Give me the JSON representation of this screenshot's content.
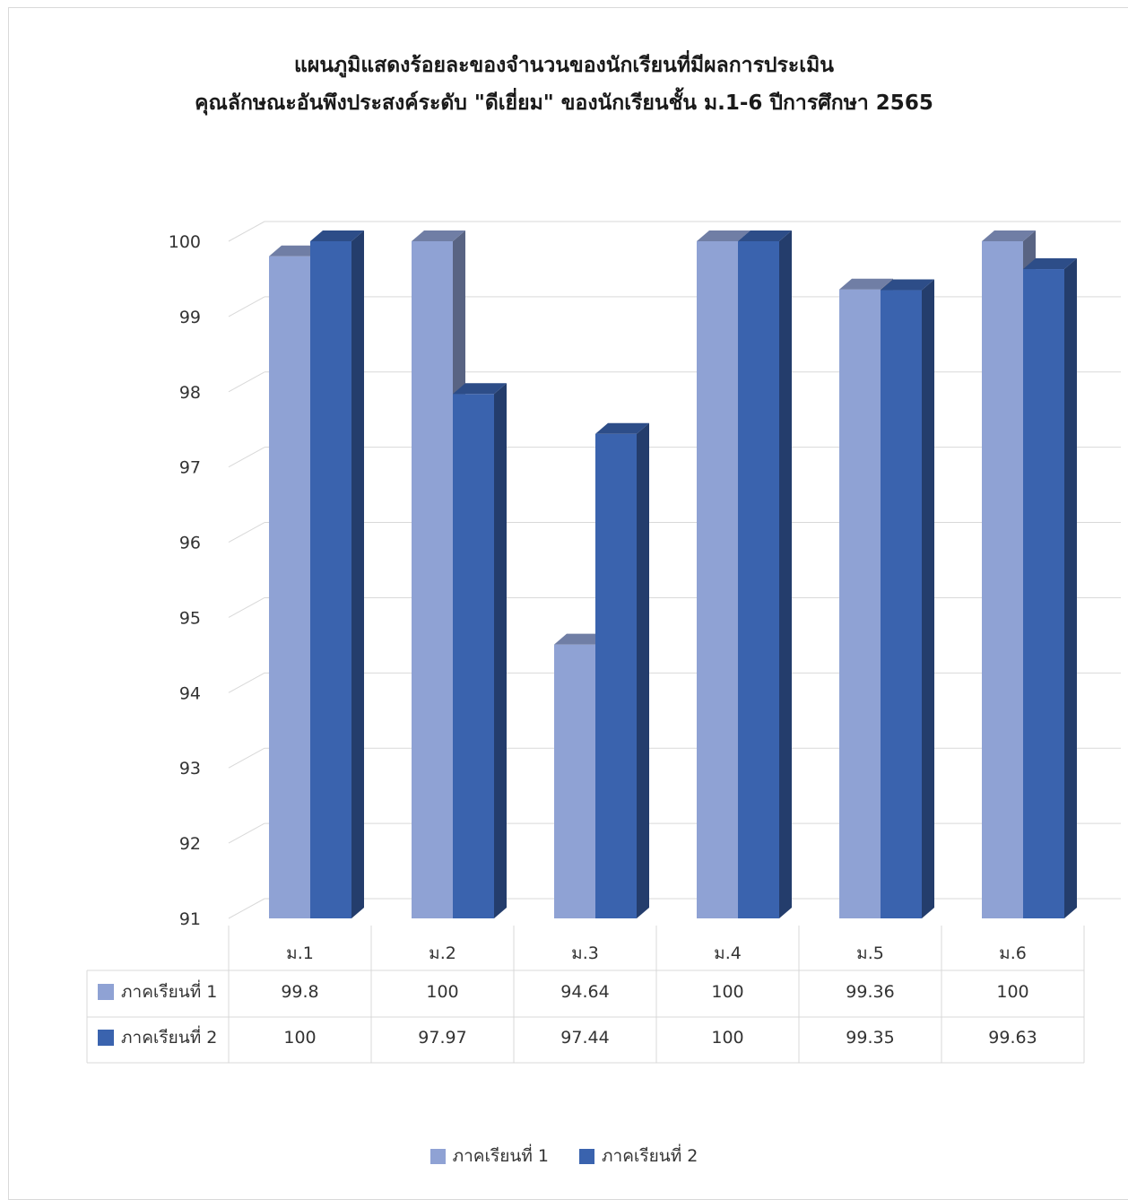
{
  "title": {
    "line1": "แผนภูมิแสดงร้อยละของจำนวนของนักเรียนที่มีผลการประเมิน",
    "line2": "คุณลักษณะอันพึงประสงค์ระดับ \"ดีเยี่ยม\"  ของนักเรียนชั้น ม.1-6 ปีการศึกษา 2565"
  },
  "chart_data": {
    "type": "bar",
    "style": "3d-clustered-column-with-data-table",
    "title": "แผนภูมิแสดงร้อยละของจำนวนของนักเรียนที่มีผลการประเมิน คุณลักษณะอันพึงประสงค์ระดับ \"ดีเยี่ยม\"  ของนักเรียนชั้น ม.1-6 ปีการศึกษา 2565",
    "categories": [
      "ม.1",
      "ม.2",
      "ม.3",
      "ม.4",
      "ม.5",
      "ม.6"
    ],
    "series": [
      {
        "name": "ภาคเรียนที่ 1",
        "values": [
          99.8,
          100,
          94.64,
          100,
          99.36,
          100
        ],
        "color": "#8FA2D4"
      },
      {
        "name": "ภาคเรียนที่ 2",
        "values": [
          100,
          97.97,
          97.44,
          100,
          99.35,
          99.63
        ],
        "color": "#3A63AE"
      }
    ],
    "data_table_text": [
      [
        "99.8",
        "100",
        "94.64",
        "100",
        "99.36",
        "100"
      ],
      [
        "100",
        "97.97",
        "97.44",
        "100",
        "99.35",
        "99.63"
      ]
    ],
    "ylim": [
      91,
      100
    ],
    "yticks": [
      100,
      99,
      98,
      97,
      96,
      95,
      94,
      93,
      92,
      91
    ],
    "grid": true,
    "legend": "bottom"
  }
}
